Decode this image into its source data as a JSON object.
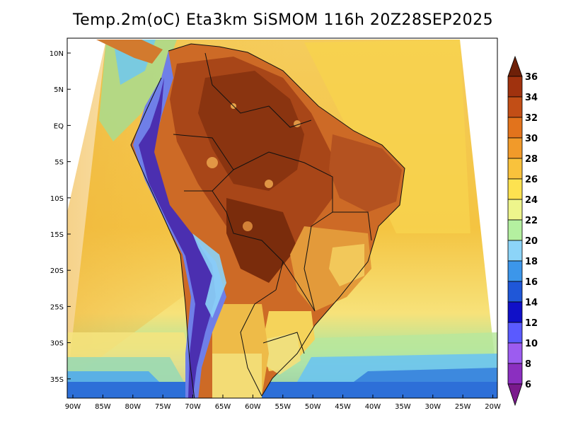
{
  "title": "Temp.2m(oC) Eta3km SiSMOM 116h 20Z28SEP2025",
  "map": {
    "lat_labels": [
      "10N",
      "5N",
      "EQ",
      "5S",
      "10S",
      "15S",
      "20S",
      "25S",
      "30S",
      "35S"
    ],
    "lon_labels": [
      "90W",
      "85W",
      "80W",
      "75W",
      "70W",
      "65W",
      "60W",
      "55W",
      "50W",
      "45W",
      "40W",
      "35W",
      "30W",
      "25W",
      "20W"
    ],
    "lon_range": [
      -90,
      -20
    ],
    "lat_range": [
      -38,
      11.5
    ]
  },
  "colorbar": {
    "unit": "oC",
    "levels": [
      "6",
      "8",
      "10",
      "12",
      "14",
      "16",
      "18",
      "20",
      "22",
      "24",
      "26",
      "28",
      "30",
      "32",
      "34",
      "36"
    ],
    "colors": [
      "#7a1a8c",
      "#8b2fc0",
      "#9c5cf0",
      "#5a5aff",
      "#1010c8",
      "#1f57d8",
      "#3c96ea",
      "#8cd4f8",
      "#b4f0a0",
      "#eef58c",
      "#fde250",
      "#f9c23c",
      "#f19a2a",
      "#e2731c",
      "#c24e16",
      "#a0320e",
      "#6e2008"
    ]
  }
}
